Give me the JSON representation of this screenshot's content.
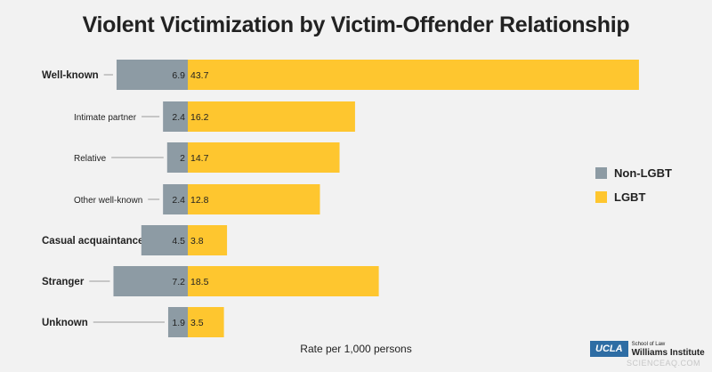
{
  "colors": {
    "non_lgbt": "#8d9ba4",
    "lgbt": "#fec62f",
    "leader": "#9a9a9a",
    "text": "#222222"
  },
  "legend": {
    "non_lgbt_label": "Non-LGBT",
    "lgbt_label": "LGBT"
  },
  "logo": {
    "ucla": "UCLA",
    "school": "School of Law",
    "institute": "Williams Institute"
  },
  "watermark": "SCIENCEAQ.COM",
  "chart_data": {
    "type": "bar",
    "orientation": "horizontal",
    "title": "Violent Victimization by Victim-Offender Relationship",
    "xlabel": "Rate per 1,000 persons",
    "ylabel": "",
    "grid": false,
    "legend_position": "right",
    "categories": [
      {
        "label": "Well-known",
        "level": 0
      },
      {
        "label": "Intimate partner",
        "level": 1
      },
      {
        "label": "Relative",
        "level": 1
      },
      {
        "label": "Other well-known",
        "level": 1
      },
      {
        "label": "Casual acquaintance",
        "level": 0
      },
      {
        "label": "Stranger",
        "level": 0
      },
      {
        "label": "Unknown",
        "level": 0
      }
    ],
    "series": [
      {
        "name": "Non-LGBT",
        "values": [
          6.9,
          2.4,
          2,
          2.4,
          4.5,
          7.2,
          1.9
        ],
        "value_labels": [
          "6.9",
          "2.4",
          "2",
          "2.4",
          "4.5",
          "7.2",
          "1.9"
        ]
      },
      {
        "name": "LGBT",
        "values": [
          43.7,
          16.2,
          14.7,
          12.8,
          3.8,
          18.5,
          3.5
        ],
        "value_labels": [
          "43.7",
          "16.2",
          "14.7",
          "12.8",
          "3.8",
          "18.5",
          "3.5"
        ]
      }
    ]
  }
}
